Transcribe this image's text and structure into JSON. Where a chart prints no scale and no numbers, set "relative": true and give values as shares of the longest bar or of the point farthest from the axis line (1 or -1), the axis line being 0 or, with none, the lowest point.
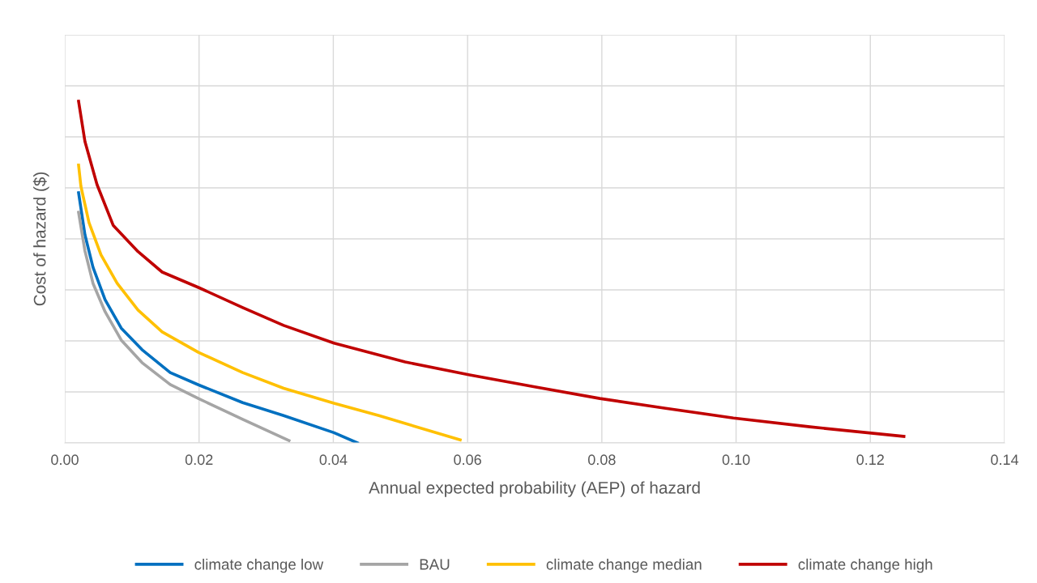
{
  "chart_data": {
    "type": "line",
    "relative": true,
    "xlabel": "Annual expected probability (AEP) of hazard",
    "ylabel": "Cost of hazard ($)",
    "xlim": [
      0,
      0.14
    ],
    "xticks": [
      {
        "value": 0,
        "label": "0.00"
      },
      {
        "value": 0.02,
        "label": "0.02"
      },
      {
        "value": 0.04,
        "label": "0.04"
      },
      {
        "value": 0.06,
        "label": "0.06"
      },
      {
        "value": 0.08,
        "label": "0.08"
      },
      {
        "value": 0.1,
        "label": "0.10"
      },
      {
        "value": 0.12,
        "label": "0.12"
      },
      {
        "value": 0.14,
        "label": "0.14"
      }
    ],
    "grid": true,
    "legend": "bottom",
    "tick_labels": "x",
    "marker": "none",
    "line_style": "solid",
    "series": [
      {
        "name": "climate change low",
        "color": "#0070c0",
        "x": [
          0.00205,
          0.003,
          0.0042,
          0.006,
          0.0084,
          0.0115,
          0.0157,
          0.0199,
          0.0265,
          0.0326,
          0.0401,
          0.0436
        ],
        "values": [
          0.732,
          0.609,
          0.514,
          0.419,
          0.336,
          0.273,
          0.206,
          0.17,
          0.118,
          0.08,
          0.03,
          0
        ]
      },
      {
        "name": "BAU",
        "color": "#a5a5a5",
        "x": [
          0.00205,
          0.003,
          0.0042,
          0.006,
          0.0084,
          0.0115,
          0.0157,
          0.0199,
          0.0265,
          0.0334
        ],
        "values": [
          0.675,
          0.562,
          0.467,
          0.384,
          0.301,
          0.235,
          0.171,
          0.13,
          0.069,
          0.007
        ]
      },
      {
        "name": "climate change median",
        "color": "#ffc000",
        "x": [
          0.00205,
          0.0024,
          0.0036,
          0.0054,
          0.0078,
          0.0109,
          0.0145,
          0.0199,
          0.0265,
          0.0326,
          0.0401,
          0.0468,
          0.0589
        ],
        "values": [
          0.813,
          0.751,
          0.645,
          0.55,
          0.467,
          0.389,
          0.325,
          0.265,
          0.206,
          0.16,
          0.116,
          0.08,
          0.009
        ]
      },
      {
        "name": "climate change high",
        "color": "#c00000",
        "x": [
          0.00205,
          0.003,
          0.0048,
          0.0072,
          0.0109,
          0.0145,
          0.0199,
          0.0265,
          0.0326,
          0.0401,
          0.0507,
          0.0603,
          0.07,
          0.0797,
          0.0893,
          0.0996,
          0.111,
          0.125
        ],
        "values": [
          1.0,
          0.882,
          0.756,
          0.637,
          0.56,
          0.5,
          0.455,
          0.396,
          0.344,
          0.292,
          0.237,
          0.199,
          0.164,
          0.13,
          0.102,
          0.073,
          0.047,
          0.019
        ]
      }
    ]
  }
}
